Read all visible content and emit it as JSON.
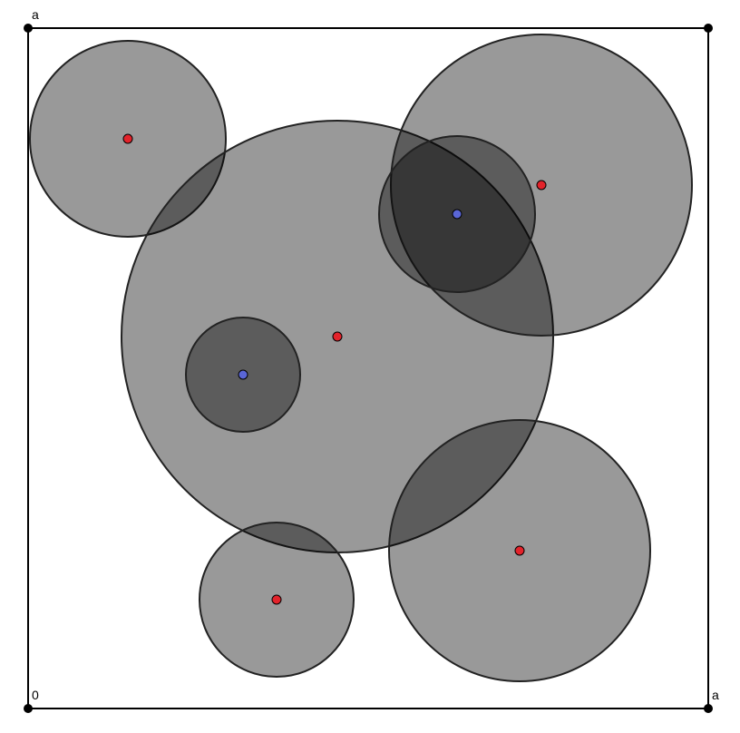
{
  "labels": {
    "top_left": "a",
    "origin": "0",
    "bottom_right": "a"
  }
}
